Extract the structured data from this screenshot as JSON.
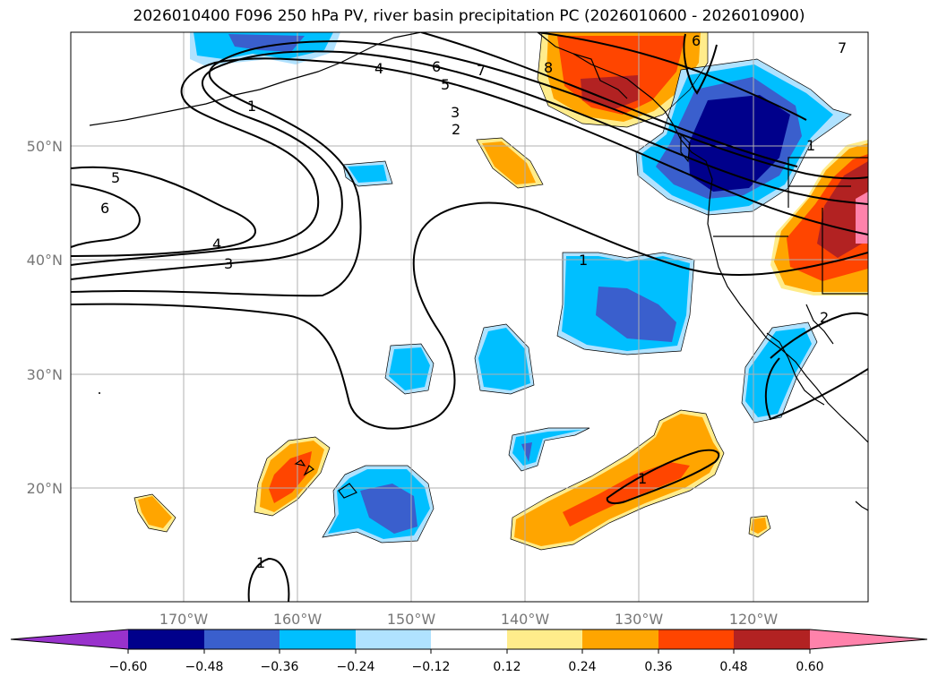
{
  "title": "2026010400 F096 250 hPa PV, river basin precipitation PC (2026010600 - 2026010900)",
  "map": {
    "lon_labels": [
      "170°W",
      "160°W",
      "150°W",
      "140°W",
      "130°W",
      "120°W"
    ],
    "lat_labels": [
      "50°N",
      "40°N",
      "30°N",
      "20°N"
    ],
    "contour_labels": [
      "1",
      "4",
      "6",
      "7",
      "5",
      "3",
      "2",
      "8",
      "6",
      "1",
      "5",
      "6",
      "4",
      "3",
      "1",
      "2",
      "1",
      "7",
      "1"
    ]
  },
  "colorbar": {
    "ticks": [
      "−0.60",
      "−0.48",
      "−0.36",
      "−0.24",
      "−0.12",
      "0.12",
      "0.24",
      "0.36",
      "0.48",
      "0.60"
    ],
    "colors": [
      "#9932cc",
      "#00008b",
      "#3a5fcd",
      "#00bfff",
      "#b0e2ff",
      "#ffffff",
      "#ffec8b",
      "#ffa500",
      "#ff4500",
      "#b22222",
      "#ff82ab"
    ]
  },
  "colors": {
    "shade_neg_strong": "#00008b",
    "shade_neg_mid": "#3a5fcd",
    "shade_neg": "#00bfff",
    "shade_neg_light": "#b0e2ff",
    "shade_pos_light": "#ffec8b",
    "shade_pos": "#ffa500",
    "shade_pos_mid": "#ff4500",
    "shade_pos_strong": "#b22222",
    "shade_pos_max": "#ff82ab"
  }
}
